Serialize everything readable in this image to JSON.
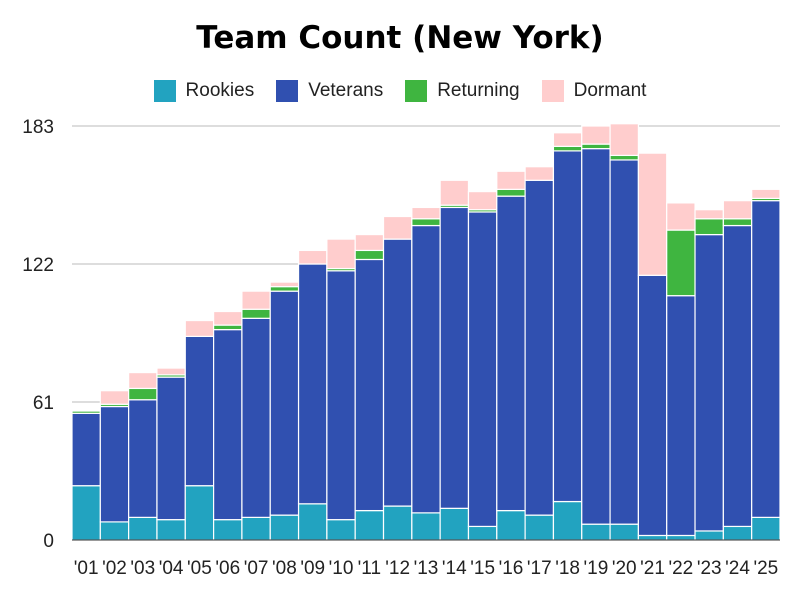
{
  "chart_data": {
    "type": "bar",
    "stacked": true,
    "title": "Team Count (New York)",
    "xlabel": "",
    "ylabel": "",
    "categories": [
      "'01",
      "'02",
      "'03",
      "'04",
      "'05",
      "'06",
      "'07",
      "'08",
      "'09",
      "'10",
      "'11",
      "'12",
      "'13",
      "'14",
      "'15",
      "'16",
      "'17",
      "'18",
      "'19",
      "'20",
      "'21",
      "'22",
      "'23",
      "'24",
      "'25"
    ],
    "yticks": [
      0,
      61,
      122,
      183
    ],
    "ylim": [
      0,
      183
    ],
    "grid": true,
    "legend_position": "top",
    "series": [
      {
        "name": "Rookies",
        "color": "#22a3c0",
        "values": [
          24,
          8,
          10,
          9,
          24,
          9,
          10,
          11,
          16,
          9,
          13,
          15,
          12,
          14,
          6,
          13,
          11,
          17,
          7,
          7,
          2,
          2,
          4,
          6,
          10
        ]
      },
      {
        "name": "Veterans",
        "color": "#3050b0",
        "values": [
          32,
          51,
          52,
          63,
          66,
          84,
          88,
          99,
          106,
          110,
          111,
          118,
          127,
          133,
          139,
          139,
          148,
          155,
          166,
          161,
          115,
          106,
          131,
          133,
          140
        ]
      },
      {
        "name": "Returning",
        "color": "#3fb540",
        "values": [
          1,
          1,
          5,
          1,
          0,
          2,
          4,
          2,
          0,
          1,
          4,
          0,
          3,
          1,
          1,
          3,
          0,
          2,
          2,
          2,
          0,
          29,
          7,
          3,
          1
        ]
      },
      {
        "name": "Dormant",
        "color": "#ffcdcd",
        "values": [
          0,
          6,
          7,
          3,
          7,
          6,
          8,
          2,
          6,
          13,
          7,
          10,
          5,
          11,
          8,
          8,
          6,
          6,
          8,
          14,
          54,
          12,
          4,
          8,
          4
        ]
      }
    ]
  }
}
